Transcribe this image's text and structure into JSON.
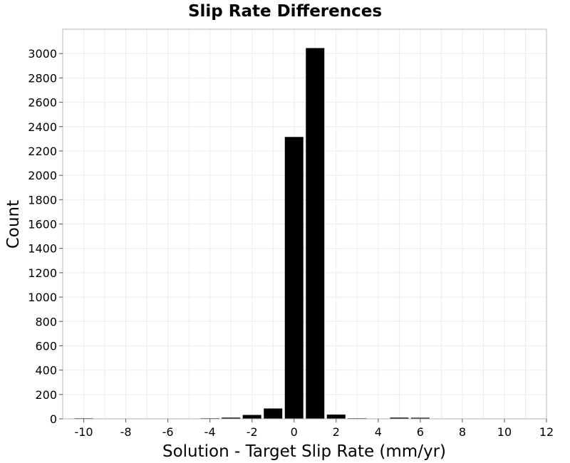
{
  "chart_data": {
    "type": "bar",
    "title": "Slip Rate Differences",
    "xlabel": "Solution - Target Slip Rate (mm/yr)",
    "ylabel": "Count",
    "xlim": [
      -11,
      12
    ],
    "ylim": [
      0,
      3200
    ],
    "x_ticks": [
      -10,
      -8,
      -6,
      -4,
      -2,
      0,
      2,
      4,
      6,
      8,
      10,
      12
    ],
    "y_ticks": [
      0,
      200,
      400,
      600,
      800,
      1000,
      1200,
      1400,
      1600,
      1800,
      2000,
      2200,
      2400,
      2600,
      2800,
      3000
    ],
    "bin_width": 1,
    "bar_color": "#000000",
    "grid": true,
    "x": [
      -10,
      -9,
      -8,
      -7,
      -6,
      -5,
      -4,
      -3,
      -2,
      -1,
      0,
      1,
      2,
      3,
      4,
      5,
      6,
      7,
      8,
      9,
      10
    ],
    "values": [
      5,
      2,
      3,
      1,
      3,
      1,
      5,
      10,
      32,
      85,
      2315,
      3045,
      35,
      5,
      3,
      10,
      9,
      1,
      2,
      1,
      2
    ]
  }
}
